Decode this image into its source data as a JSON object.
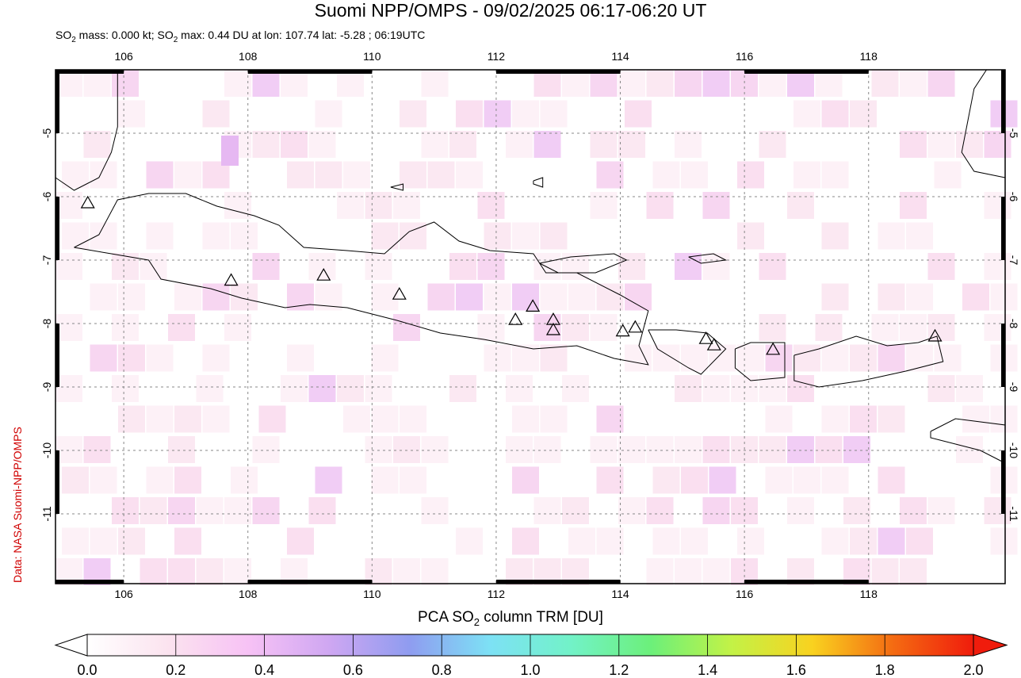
{
  "header": {
    "title": "Suomi NPP/OMPS - 09/02/2025 06:17-06:20 UT",
    "subtitle_prefix": "SO",
    "subtitle_sub": "2",
    "subtitle_mid": " mass: 0.000 kt; SO",
    "subtitle_suffix": " max: 0.44 DU at lon: 107.74 lat: -5.28 ; 06:19UTC"
  },
  "credit": "Data: NASA Suomi-NPP/OMPS",
  "map": {
    "lon_range": [
      104.9,
      120.2
    ],
    "lat_range": [
      -12.1,
      -4.0
    ],
    "lon_ticks": [
      "106",
      "108",
      "110",
      "112",
      "114",
      "116",
      "118"
    ],
    "lat_ticks": [
      "-5",
      "-6",
      "-7",
      "-8",
      "-9",
      "-10",
      "-11"
    ],
    "volcano_icon": "triangle-outline-icon",
    "volcanoes": [
      [
        105.42,
        -6.1
      ],
      [
        107.73,
        -7.32
      ],
      [
        109.22,
        -7.24
      ],
      [
        110.44,
        -7.54
      ],
      [
        112.31,
        -7.94
      ],
      [
        112.59,
        -7.73
      ],
      [
        112.92,
        -7.94
      ],
      [
        112.92,
        -8.1
      ],
      [
        114.04,
        -8.12
      ],
      [
        114.24,
        -8.06
      ],
      [
        115.38,
        -8.24
      ],
      [
        115.51,
        -8.34
      ],
      [
        116.46,
        -8.41
      ],
      [
        119.07,
        -8.2
      ]
    ]
  },
  "colorbar": {
    "title_prefix": "PCA SO",
    "title_sub": "2",
    "title_suffix": " column TRM [DU]",
    "ticks": [
      "0.0",
      "0.2",
      "0.4",
      "0.6",
      "0.8",
      "1.0",
      "1.2",
      "1.4",
      "1.6",
      "1.8",
      "2.0"
    ],
    "colors": [
      "#ffffff",
      "#fbe3ef",
      "#f7c2f5",
      "#cfa7f2",
      "#8f9cf0",
      "#7de1f5",
      "#72f2c8",
      "#6cf07a",
      "#c3f246",
      "#f9d21f",
      "#f46b12",
      "#f01c0c"
    ]
  }
}
